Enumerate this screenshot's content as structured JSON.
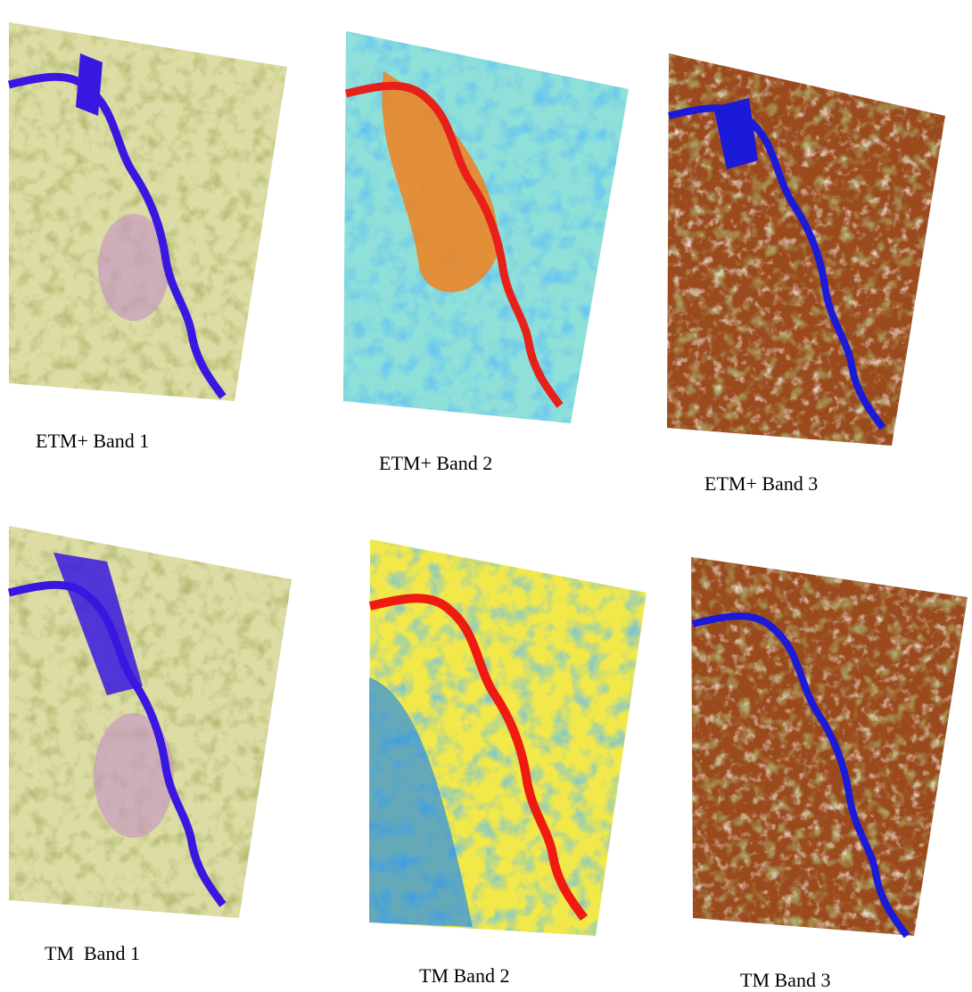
{
  "panels": [
    {
      "caption": "ETM+ Band 1"
    },
    {
      "caption": "ETM+ Band 2"
    },
    {
      "caption": "ETM+ Band 3"
    },
    {
      "caption": "TM  Band 1"
    },
    {
      "caption": "TM Band 2"
    },
    {
      "caption": "TM Band 3"
    }
  ]
}
